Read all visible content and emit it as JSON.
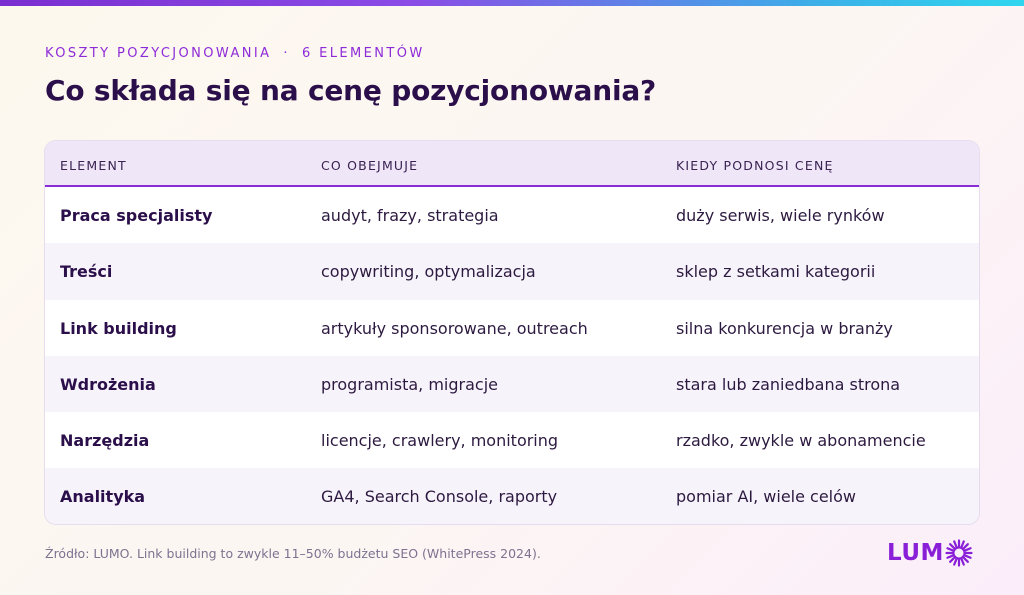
{
  "header": {
    "eyebrow_topic": "KOSZTY POZYCJONOWANIA",
    "eyebrow_separator": "·",
    "eyebrow_count": "6 ELEMENTÓW",
    "title": "Co składa się na cenę pozycjonowania?"
  },
  "table": {
    "columns": [
      "ELEMENT",
      "CO OBEJMUJE",
      "KIEDY PODNOSI CENĘ"
    ],
    "rows": [
      {
        "element": "Praca specjalisty",
        "scope": "audyt, frazy, strategia",
        "when": "duży serwis, wiele rynków"
      },
      {
        "element": "Treści",
        "scope": "copywriting, optymalizacja",
        "when": "sklep z setkami kategorii"
      },
      {
        "element": "Link building",
        "scope": "artykuły sponsorowane, outreach",
        "when": "silna konkurencja w branży"
      },
      {
        "element": "Wdrożenia",
        "scope": "programista, migracje",
        "when": "stara lub zaniedbana strona"
      },
      {
        "element": "Narzędzia",
        "scope": "licencje, crawlery, monitoring",
        "when": "rzadko, zwykle w abonamencie"
      },
      {
        "element": "Analityka",
        "scope": "GA4, Search Console, raporty",
        "when": "pomiar AI, wiele celów"
      }
    ]
  },
  "footer": {
    "source": "Źródło: LUMO. Link building to zwykle 11–50% budżetu SEO (WhitePress 2024)."
  },
  "logo": {
    "text": "LUM",
    "icon": "sun-ring-icon",
    "color": "#8a1fd8"
  },
  "colors": {
    "accent": "#8a2bd6",
    "title": "#2b0f4a",
    "header_bg": "#efe6f8"
  }
}
